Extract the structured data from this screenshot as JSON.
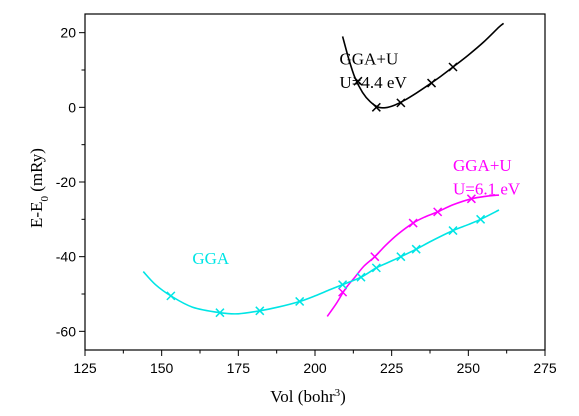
{
  "chart_data": {
    "type": "line",
    "title": "",
    "xlabel": "Vol (bohr",
    "xlabel_sup": "3",
    "xlabel_close": ")",
    "ylabel": "E-E",
    "ylabel_sub": "0",
    "ylabel_rest": " (mRy)",
    "xlim": [
      125,
      275
    ],
    "ylim": [
      -65,
      25
    ],
    "xticks": [
      125,
      150,
      175,
      200,
      225,
      250,
      275
    ],
    "yticks": [
      -60,
      -40,
      -20,
      0,
      20
    ],
    "grid": false,
    "colors": {
      "black": "#000000",
      "magenta": "#ff00ff",
      "cyan": "#00e5e5"
    },
    "annotations": [
      {
        "id": "gga-u-44-line1",
        "text": "GGA+U",
        "color": "#000000",
        "x": 208,
        "y": 11.5
      },
      {
        "id": "gga-u-44-line2",
        "text": "U=4.4 eV",
        "color": "#000000",
        "x": 208,
        "y": 5.2
      },
      {
        "id": "gga-u-61-line1",
        "text": "GGA+U",
        "color": "#ff00ff",
        "x": 245,
        "y": -17
      },
      {
        "id": "gga-u-61-line2",
        "text": "U=6.1 eV",
        "color": "#ff00ff",
        "x": 245,
        "y": -23.3
      },
      {
        "id": "gga",
        "text": "GGA",
        "color": "#00e5e5",
        "x": 160,
        "y": -42
      }
    ],
    "series": [
      {
        "id": "black",
        "color": "#000000",
        "points": [
          [
            214,
            7
          ],
          [
            220,
            0
          ],
          [
            228,
            1.2
          ],
          [
            238,
            6.5
          ],
          [
            245,
            10.8
          ]
        ],
        "curve": [
          [
            209,
            19
          ],
          [
            211,
            13
          ],
          [
            213,
            8
          ],
          [
            215.5,
            4
          ],
          [
            218,
            1.5
          ],
          [
            220.5,
            0.1
          ],
          [
            223,
            -0.1
          ],
          [
            226,
            0.6
          ],
          [
            229,
            1.8
          ],
          [
            233,
            3.8
          ],
          [
            237,
            6
          ],
          [
            241,
            8.3
          ],
          [
            245,
            10.8
          ],
          [
            250,
            14
          ],
          [
            255,
            17.5
          ],
          [
            260,
            21.5
          ],
          [
            261.5,
            22.5
          ]
        ]
      },
      {
        "id": "magenta",
        "color": "#ff00ff",
        "points": [
          [
            209,
            -49.5
          ],
          [
            219.5,
            -40
          ],
          [
            232,
            -31
          ],
          [
            240,
            -28
          ],
          [
            251,
            -24.5
          ]
        ],
        "curve": [
          [
            204,
            -56
          ],
          [
            207,
            -52.5
          ],
          [
            210,
            -48.5
          ],
          [
            213,
            -45.5
          ],
          [
            216,
            -42.5
          ],
          [
            219.5,
            -40
          ],
          [
            223,
            -37
          ],
          [
            227,
            -34
          ],
          [
            232,
            -31
          ],
          [
            236,
            -29.3
          ],
          [
            240,
            -28
          ],
          [
            245,
            -26.1
          ],
          [
            251,
            -24.5
          ],
          [
            256,
            -23.8
          ],
          [
            260,
            -23.5
          ]
        ]
      },
      {
        "id": "cyan",
        "color": "#00e5e5",
        "points": [
          [
            153,
            -50.5
          ],
          [
            169,
            -55
          ],
          [
            182,
            -54.5
          ],
          [
            195,
            -52
          ],
          [
            209,
            -47.5
          ],
          [
            215,
            -45.5
          ],
          [
            220,
            -43
          ],
          [
            228,
            -40
          ],
          [
            233,
            -38
          ],
          [
            245,
            -33
          ],
          [
            254,
            -30
          ]
        ],
        "curve": [
          [
            144,
            -44
          ],
          [
            148,
            -47.5
          ],
          [
            153,
            -50.5
          ],
          [
            160,
            -53.5
          ],
          [
            169,
            -55
          ],
          [
            175,
            -55.3
          ],
          [
            182,
            -54.5
          ],
          [
            188,
            -53.5
          ],
          [
            195,
            -52
          ],
          [
            200,
            -50.5
          ],
          [
            205,
            -48.8
          ],
          [
            209,
            -47.5
          ],
          [
            215,
            -45.5
          ],
          [
            220,
            -43
          ],
          [
            224,
            -41.5
          ],
          [
            228,
            -40
          ],
          [
            233,
            -38
          ],
          [
            238,
            -35.8
          ],
          [
            245,
            -33
          ],
          [
            250,
            -31.4
          ],
          [
            254,
            -30
          ],
          [
            260,
            -27.5
          ]
        ]
      }
    ]
  }
}
